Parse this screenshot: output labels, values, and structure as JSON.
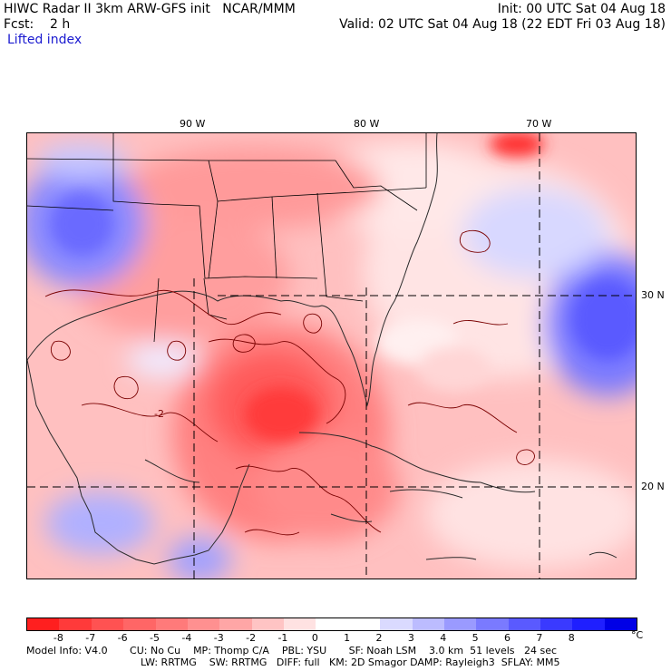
{
  "header": {
    "title": "HIWC Radar II 3km ARW-GFS init   NCAR/MMM",
    "init": "Init: 00 UTC Sat 04 Aug 18",
    "fcst": "Fcst:    2 h",
    "valid": "Valid: 02 UTC Sat 04 Aug 18 (22 EDT Fri 03 Aug 18)",
    "field": "Lifted index"
  },
  "map": {
    "lon_labels": [
      "90 W",
      "80 W",
      "70 W"
    ],
    "lat_labels": [
      "30 N",
      "20 N"
    ],
    "contour_label": "-2"
  },
  "colorbar": {
    "tick_labels": [
      "-8",
      "-7",
      "-6",
      "-5",
      "-4",
      "-3",
      "-2",
      "-1",
      "0",
      "1",
      "2",
      "3",
      "4",
      "5",
      "6",
      "7",
      "8"
    ],
    "unit": "°C",
    "colors": [
      "#ff1f1f",
      "#ff3a3a",
      "#ff5252",
      "#ff6666",
      "#ff7a7a",
      "#ff9090",
      "#ffa6a6",
      "#ffc4c4",
      "#ffe2e2",
      "#ffffff",
      "#ffffff",
      "#dadaff",
      "#bcbcff",
      "#9a9aff",
      "#7a7aff",
      "#5a5aff",
      "#3a3aff",
      "#1f1fff",
      "#0000e6"
    ]
  },
  "footer": {
    "line1": "Model Info: V4.0       CU: No Cu    MP: Thomp C/A    PBL: YSU       SF: Noah LSM    3.0 km  51 levels   24 sec",
    "line2": "LW: RRTMG    SW: RRTMG   DIFF: full   KM: 2D Smagor DAMP: Rayleigh3  SFLAY: MM5"
  }
}
